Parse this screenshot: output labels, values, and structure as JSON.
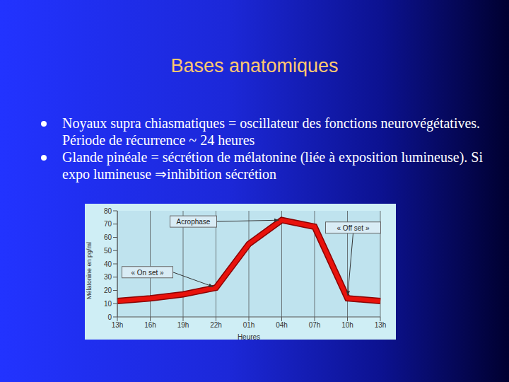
{
  "slide": {
    "title": "Bases anatomiques",
    "bullets": [
      "Noyaux supra chiasmatiques = oscillateur des fonctions neurovégétatives. Période de récurrence ~ 24 heures",
      "Glande pinéale = sécrétion de mélatonine (liée à exposition lumineuse). Si expo lumineuse ⇒inhibition sécrétion"
    ]
  },
  "chart_data": {
    "type": "line",
    "categories": [
      "13h",
      "16h",
      "19h",
      "22h",
      "01h",
      "04h",
      "07h",
      "10h",
      "13h"
    ],
    "values": [
      12,
      14,
      17,
      22,
      55,
      73,
      68,
      14,
      12
    ],
    "color": "#e8120c",
    "ylim": [
      0,
      80
    ],
    "yticks": [
      0,
      10,
      20,
      30,
      40,
      50,
      60,
      70,
      80
    ],
    "y_label": "Mélatonine en pg/ml",
    "x_label": "Heures",
    "annotations": [
      "Acrophase",
      "« On set »",
      "« Off set »"
    ],
    "grid": true
  }
}
